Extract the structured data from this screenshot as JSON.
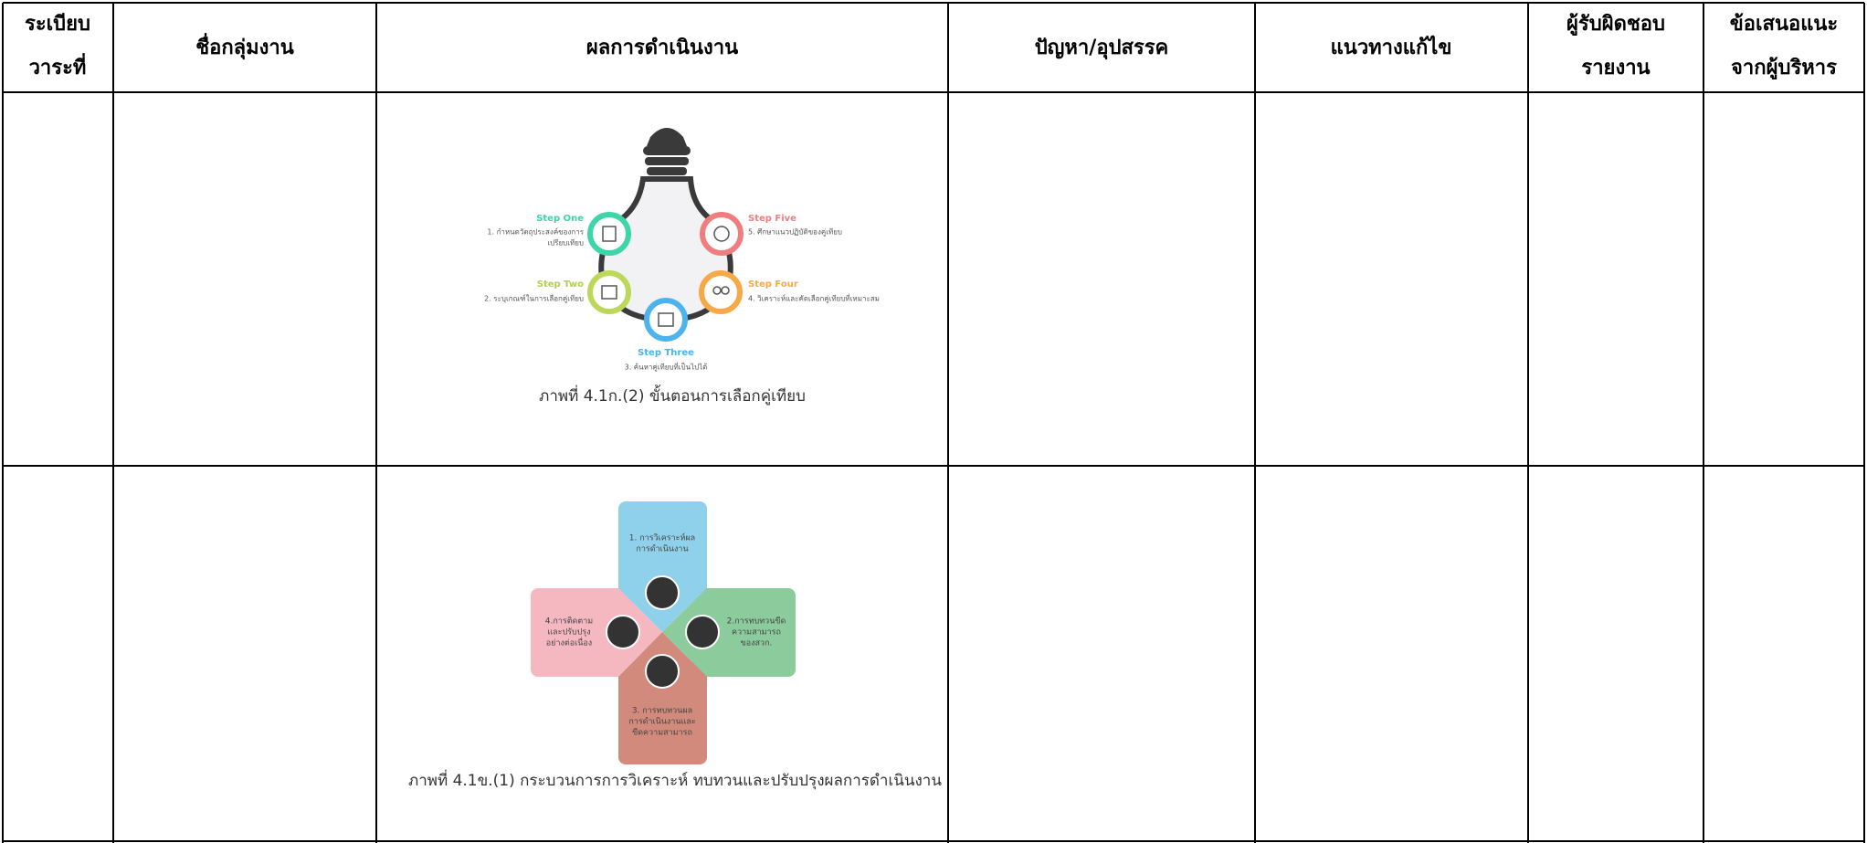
{
  "table": {
    "headers": [
      [
        "ระเบียบ",
        "วาระที่"
      ],
      [
        "ชื่อกลุ่มงาน"
      ],
      [
        "ผลการดำเนินงาน"
      ],
      [
        "ปัญหา/อุปสรรค"
      ],
      [
        "แนวทางแก้ไข"
      ],
      [
        "ผู้รับผิดชอบ",
        "รายงาน"
      ],
      [
        "ข้อเสนอแนะ",
        "จากผู้บริหาร"
      ]
    ],
    "rows": [
      {
        "figure": {
          "steps": [
            {
              "title": "Step One",
              "text": [
                "1. กำหนดวัตถุประสงค์ของการ",
                "เปรียบเทียบ"
              ]
            },
            {
              "title": "Step Two",
              "text": [
                "2. ระบุเกณฑ์ในการเลือกคู่เทียบ"
              ]
            },
            {
              "title": "Step Three",
              "text": [
                "3. ค้นหาคู่เทียบที่เป็นไปได้"
              ]
            },
            {
              "title": "Step Four",
              "text": [
                "4. วิเคราะห์และคัดเลือกคู่เทียบที่เหมาะสม"
              ]
            },
            {
              "title": "Step Five",
              "text": [
                "5. ศึกษาแนวปฏิบัติของคู่เทียบ"
              ]
            }
          ],
          "caption": "ภาพที่ 4.1ก.(2) ขั้นตอนการเลือกคู่เทียบ"
        }
      },
      {
        "figure": {
          "quadrants": [
            [
              "1. การวิเคราะห์ผล",
              "การดำเนินงาน"
            ],
            [
              "2.การทบทวนขีด",
              "ความสามารถ",
              "ของสวก."
            ],
            [
              "3. การทบทวนผล",
              "การดำเนินงานและ",
              "ขีดความสามารถ"
            ],
            [
              "4.การติดตาม",
              "และปรับปรุง",
              "อย่างต่อเนื่อง"
            ]
          ],
          "caption": "ภาพที่ 4.1ข.(1) กระบวนการการวิเคราะห์ ทบทวนและปรับปรุงผลการดำเนินงาน"
        }
      }
    ]
  }
}
